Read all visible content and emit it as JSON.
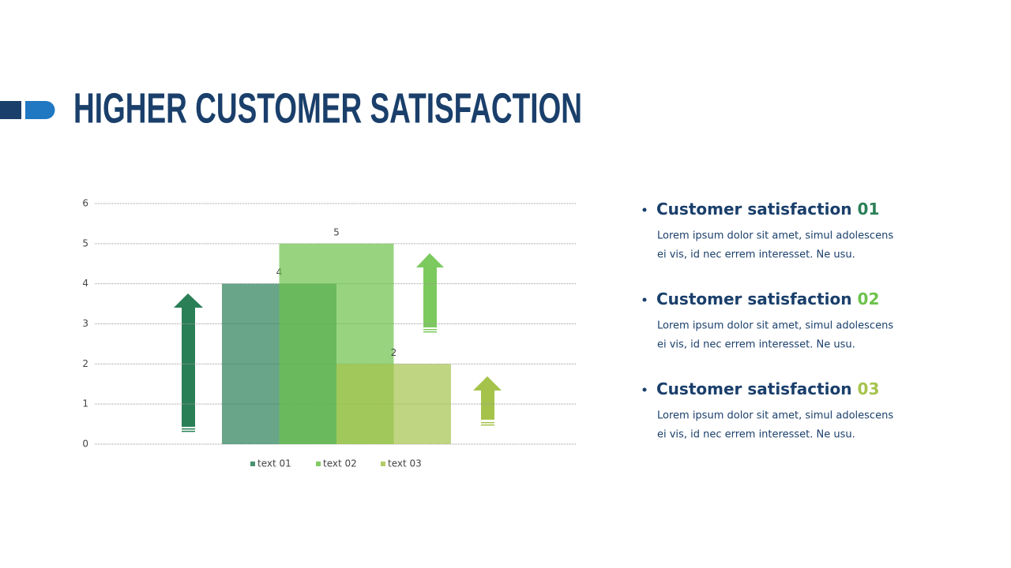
{
  "title": "HIGHER CUSTOMER SATISFACTION",
  "chart_data": {
    "type": "bar",
    "series": [
      {
        "name": "text 01",
        "color": "#2a7f57",
        "values": [
          4
        ]
      },
      {
        "name": "text 02",
        "color": "#6cc24a",
        "values": [
          5
        ]
      },
      {
        "name": "text 03",
        "color": "#a5c34b",
        "values": [
          2
        ]
      }
    ],
    "ylim": [
      0,
      6
    ],
    "yticks": [
      0,
      1,
      2,
      3,
      4,
      5,
      6
    ],
    "grid": true
  },
  "items": [
    {
      "title": "Customer satisfaction",
      "number": "01",
      "color": "#2a7f57",
      "body": [
        "Lorem ipsum dolor sit amet, simul adolescens",
        "ei vis, id nec errem interesset.  Ne usu."
      ]
    },
    {
      "title": "Customer satisfaction",
      "number": "02",
      "color": "#6cc24a",
      "body": [
        "Lorem ipsum dolor sit amet, simul adolescens",
        "ei vis, id nec errem interesset.  Ne usu."
      ]
    },
    {
      "title": "Customer satisfaction",
      "number": "03",
      "color": "#a5c34b",
      "body": [
        "Lorem ipsum dolor sit amet, simul adolescens",
        "ei vis, id nec errem interesset.  Ne usu."
      ]
    }
  ]
}
